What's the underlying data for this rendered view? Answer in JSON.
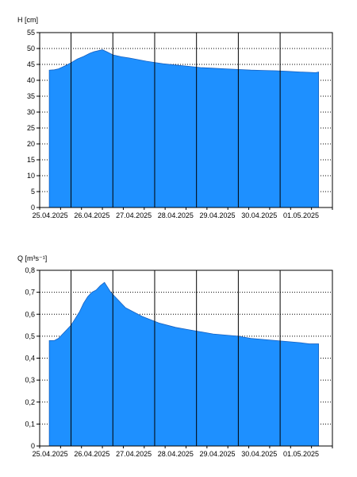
{
  "chart_data": [
    {
      "type": "area",
      "ylabel": "H [cm]",
      "ylim": [
        0,
        55
      ],
      "yticks": [
        0,
        5,
        10,
        15,
        20,
        25,
        30,
        35,
        40,
        45,
        50,
        55
      ],
      "ytick_labels": [
        "0",
        "5",
        "10",
        "15",
        "20",
        "25",
        "30",
        "35",
        "40",
        "45",
        "50",
        "55"
      ],
      "x_dates": [
        "25.04.2025",
        "26.04.2025",
        "27.04.2025",
        "28.04.2025",
        "29.04.2025",
        "30.04.2025",
        "01.05.2025"
      ],
      "xlim_days": [
        -0.25,
        6.75
      ],
      "grid": true,
      "fill_color": "#1e90ff",
      "series": [
        {
          "x": [
            -0.02,
            0.1,
            0.2,
            0.35,
            0.5,
            0.65,
            0.8,
            0.95,
            1.05,
            1.15,
            1.25,
            1.35,
            1.5,
            1.7,
            1.9,
            2.1,
            2.3,
            2.5,
            2.7,
            3.0,
            3.3,
            3.6,
            3.9,
            4.2,
            4.5,
            4.8,
            5.1,
            5.4,
            5.7,
            6.0,
            6.2,
            6.35,
            6.42
          ],
          "y": [
            43.2,
            43.3,
            43.6,
            44.5,
            45.5,
            46.7,
            47.5,
            48.5,
            49.0,
            49.3,
            49.6,
            49.0,
            48.0,
            47.4,
            47.0,
            46.5,
            46.0,
            45.6,
            45.2,
            44.8,
            44.4,
            44.0,
            43.8,
            43.6,
            43.4,
            43.2,
            43.1,
            43.0,
            42.8,
            42.6,
            42.5,
            42.4,
            42.6
          ]
        }
      ]
    },
    {
      "type": "area",
      "ylabel": "Q [m³s⁻¹]",
      "ylim": [
        0,
        0.8
      ],
      "yticks": [
        0,
        0.1,
        0.2,
        0.3,
        0.4,
        0.5,
        0.6,
        0.7,
        0.8
      ],
      "ytick_labels": [
        "0",
        "0,1",
        "0,2",
        "0,3",
        "0,4",
        "0,5",
        "0,6",
        "0,7",
        "0,8"
      ],
      "x_dates": [
        "25.04.2025",
        "26.04.2025",
        "27.04.2025",
        "28.04.2025",
        "29.04.2025",
        "30.04.2025",
        "01.05.2025"
      ],
      "xlim_days": [
        -0.25,
        6.75
      ],
      "grid": true,
      "fill_color": "#1e90ff",
      "series": [
        {
          "x": [
            -0.02,
            0.1,
            0.2,
            0.3,
            0.4,
            0.5,
            0.6,
            0.7,
            0.8,
            0.9,
            1.0,
            1.1,
            1.2,
            1.3,
            1.35,
            1.45,
            1.6,
            1.8,
            2.0,
            2.2,
            2.4,
            2.6,
            2.8,
            3.0,
            3.3,
            3.6,
            3.9,
            4.2,
            4.5,
            4.8,
            5.1,
            5.4,
            5.7,
            6.0,
            6.2,
            6.42
          ],
          "y": [
            0.48,
            0.48,
            0.49,
            0.51,
            0.53,
            0.55,
            0.58,
            0.61,
            0.65,
            0.68,
            0.7,
            0.71,
            0.73,
            0.745,
            0.73,
            0.7,
            0.67,
            0.63,
            0.61,
            0.59,
            0.575,
            0.56,
            0.55,
            0.54,
            0.53,
            0.52,
            0.51,
            0.505,
            0.5,
            0.49,
            0.485,
            0.48,
            0.475,
            0.47,
            0.465,
            0.465
          ]
        }
      ]
    }
  ]
}
